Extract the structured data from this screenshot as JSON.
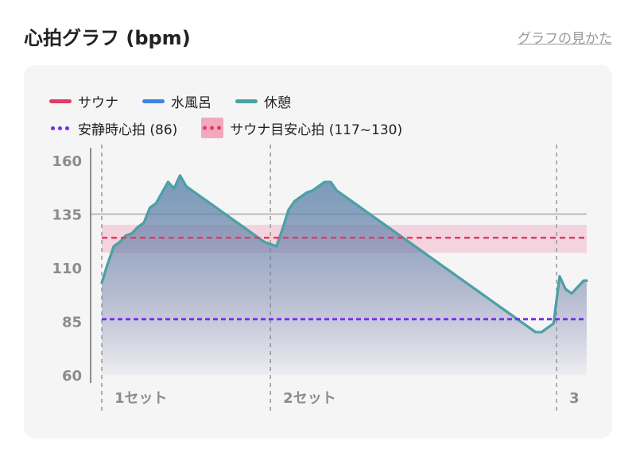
{
  "header": {
    "title": "心拍グラフ (bpm)",
    "help_link": "グラフの見かた"
  },
  "colors": {
    "sauna": "#e33b63",
    "cold_bath": "#3f84e5",
    "rest": "#4aa3a3",
    "resting_hr": "#7a2ff0",
    "target_band": "#f2b2c3"
  },
  "legend": {
    "sauna": "サウナ",
    "cold_bath": "水風呂",
    "rest": "休憩",
    "resting_hr": "安静時心拍 (86)",
    "target": "サウナ目安心拍 (117~130)"
  },
  "chart_data": {
    "type": "line",
    "xlabel": "",
    "ylabel": "",
    "ylim": [
      60,
      160
    ],
    "yticks": [
      60,
      85,
      110,
      135,
      160
    ],
    "reference_lines": {
      "resting_hr": 86,
      "target_center": 124,
      "upper_grid": 135
    },
    "target_band": [
      117,
      130
    ],
    "sets": [
      {
        "label": "1セット",
        "start": 0
      },
      {
        "label": "2セット",
        "start": 56
      },
      {
        "label": "3",
        "start": 151
      }
    ],
    "x_end": 161,
    "series": [
      {
        "key": "sauna",
        "name": "サウナ",
        "x": [
          0,
          2,
          4,
          6,
          8,
          10,
          12,
          14,
          16,
          18,
          20,
          22,
          24,
          26,
          28,
          30,
          32,
          34,
          36,
          38,
          40,
          42,
          44,
          46,
          48,
          50,
          52,
          54,
          56,
          58,
          60,
          62,
          64,
          66,
          68,
          70,
          72,
          74,
          76,
          78,
          80,
          82,
          84,
          86,
          88,
          90,
          92,
          94,
          96,
          98,
          100,
          102,
          104,
          106,
          108,
          110,
          112,
          114,
          116,
          118,
          120,
          122,
          124,
          126,
          128,
          130,
          132,
          134,
          136,
          138,
          140,
          142,
          144,
          146,
          148,
          150,
          152,
          154,
          156,
          158,
          160,
          161
        ],
        "values": [
          103,
          112,
          120,
          122,
          125,
          126,
          129,
          131,
          138,
          140,
          145,
          150,
          147,
          153,
          148,
          146,
          144,
          142,
          140,
          138,
          136,
          134,
          132,
          130,
          128,
          126,
          124,
          122,
          121,
          120,
          128,
          137,
          141,
          143,
          145,
          146,
          148,
          150,
          150,
          146,
          144,
          142,
          140,
          138,
          136,
          134,
          132,
          130,
          128,
          126,
          124,
          122,
          120,
          118,
          116,
          114,
          112,
          110,
          108,
          106,
          104,
          102,
          100,
          98,
          96,
          94,
          92,
          90,
          88,
          86,
          84,
          82,
          80,
          80,
          82,
          84,
          106,
          100,
          98,
          101,
          104,
          104
        ]
      },
      {
        "key": "cold_bath",
        "name": "水風呂",
        "x": [
          0,
          2,
          4,
          6,
          8,
          10,
          12,
          14,
          16,
          18,
          20,
          22,
          24,
          26,
          28,
          30,
          32,
          34,
          36,
          38,
          40,
          42,
          44,
          46,
          48,
          50,
          52,
          54,
          56,
          58,
          60,
          62,
          64,
          66,
          68,
          70,
          72,
          74,
          76,
          78,
          80,
          82,
          84,
          86,
          88,
          90,
          92,
          94,
          96,
          98,
          100,
          102,
          104,
          106,
          108,
          110,
          112,
          114,
          116,
          118,
          120,
          122,
          124,
          126,
          128,
          130,
          132,
          134,
          136,
          138,
          140,
          142,
          144,
          146,
          148,
          150,
          152,
          154,
          156,
          158,
          160,
          161
        ],
        "values": [
          103,
          112,
          120,
          122,
          125,
          126,
          129,
          131,
          138,
          140,
          145,
          150,
          147,
          153,
          148,
          146,
          144,
          142,
          140,
          138,
          136,
          134,
          132,
          130,
          128,
          126,
          124,
          122,
          121,
          120,
          128,
          137,
          141,
          143,
          145,
          146,
          148,
          150,
          150,
          146,
          144,
          142,
          140,
          138,
          136,
          134,
          132,
          130,
          128,
          126,
          124,
          122,
          120,
          118,
          116,
          114,
          112,
          110,
          108,
          106,
          104,
          102,
          100,
          98,
          96,
          94,
          92,
          90,
          88,
          86,
          84,
          82,
          80,
          80,
          82,
          84,
          106,
          100,
          98,
          101,
          104,
          104
        ]
      },
      {
        "key": "rest",
        "name": "休憩",
        "x": [
          0,
          2,
          4,
          6,
          8,
          10,
          12,
          14,
          16,
          18,
          20,
          22,
          24,
          26,
          28,
          30,
          32,
          34,
          36,
          38,
          40,
          42,
          44,
          46,
          48,
          50,
          52,
          54,
          56,
          58,
          60,
          62,
          64,
          66,
          68,
          70,
          72,
          74,
          76,
          78,
          80,
          82,
          84,
          86,
          88,
          90,
          92,
          94,
          96,
          98,
          100,
          102,
          104,
          106,
          108,
          110,
          112,
          114,
          116,
          118,
          120,
          122,
          124,
          126,
          128,
          130,
          132,
          134,
          136,
          138,
          140,
          142,
          144,
          146,
          148,
          150,
          152,
          154,
          156,
          158,
          160,
          161
        ],
        "values": [
          103,
          112,
          120,
          122,
          125,
          126,
          129,
          131,
          138,
          140,
          145,
          150,
          147,
          153,
          148,
          146,
          144,
          142,
          140,
          138,
          136,
          134,
          132,
          130,
          128,
          126,
          124,
          122,
          121,
          120,
          128,
          137,
          141,
          143,
          145,
          146,
          148,
          150,
          150,
          146,
          144,
          142,
          140,
          138,
          136,
          134,
          132,
          130,
          128,
          126,
          124,
          122,
          120,
          118,
          116,
          114,
          112,
          110,
          108,
          106,
          104,
          102,
          100,
          98,
          96,
          94,
          92,
          90,
          88,
          86,
          84,
          82,
          80,
          80,
          82,
          84,
          106,
          100,
          98,
          101,
          104,
          104
        ]
      }
    ]
  }
}
